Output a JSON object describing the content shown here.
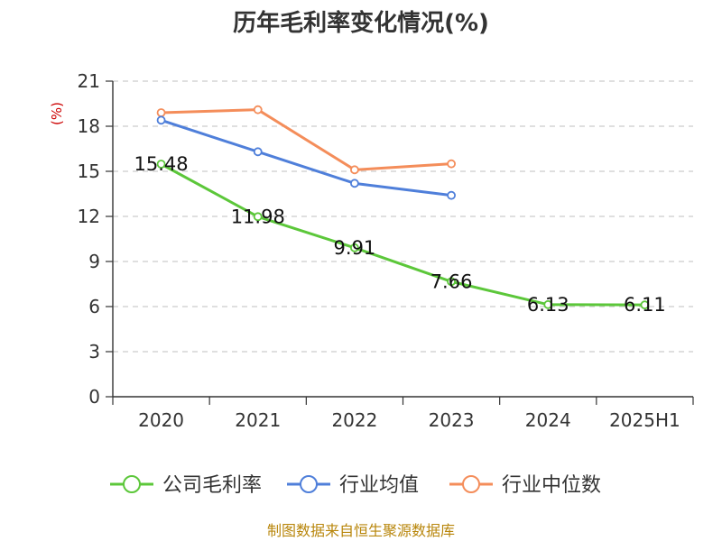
{
  "chart_data": {
    "type": "line",
    "title": "历年毛利率变化情况(%)",
    "ylabel": "(%)",
    "ylim": [
      0,
      21
    ],
    "yticks": [
      0,
      3,
      6,
      9,
      12,
      15,
      18,
      21
    ],
    "categories": [
      "2020",
      "2021",
      "2022",
      "2023",
      "2024",
      "2025H1"
    ],
    "grid": true,
    "legend_position": "bottom",
    "series": [
      {
        "name": "公司毛利率",
        "color": "#5cc73a",
        "values": [
          15.48,
          11.98,
          9.91,
          7.66,
          6.13,
          6.11
        ],
        "labels": [
          "15.48",
          "11.98",
          "9.91",
          "7.66",
          "6.13",
          "6.11"
        ]
      },
      {
        "name": "行业均值",
        "color": "#4f7fda",
        "values": [
          18.4,
          16.3,
          14.2,
          13.4,
          null,
          null
        ]
      },
      {
        "name": "行业中位数",
        "color": "#f48d5a",
        "values": [
          18.9,
          19.1,
          15.1,
          15.5,
          null,
          null
        ]
      }
    ]
  },
  "footer": {
    "source": "制图数据来自恒生聚源数据库"
  }
}
